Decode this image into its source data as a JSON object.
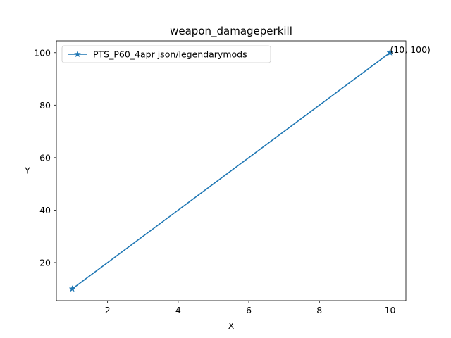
{
  "chart_data": {
    "type": "line",
    "title": "weapon_damageperkill",
    "xlabel": "X",
    "ylabel": "Y",
    "xlim": [
      0.55,
      10.45
    ],
    "ylim": [
      5.5,
      104.5
    ],
    "xticks": [
      2,
      4,
      6,
      8,
      10
    ],
    "yticks": [
      20,
      40,
      60,
      80,
      100
    ],
    "grid": false,
    "legend_position": "top-left",
    "series": [
      {
        "name": "PTS_P60_4apr json/legendarymods",
        "color": "#1f77b4",
        "marker": "star",
        "x": [
          1,
          10
        ],
        "y": [
          10,
          100
        ]
      }
    ],
    "annotations": [
      {
        "text": "(10, 100)",
        "x": 10,
        "y": 100
      }
    ]
  }
}
